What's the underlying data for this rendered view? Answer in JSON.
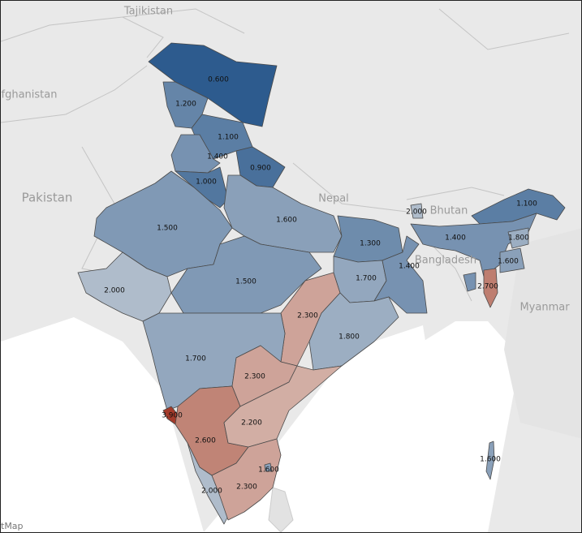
{
  "map": {
    "countries": [
      {
        "name": "Tajikistan"
      },
      {
        "name": "fghanistan"
      },
      {
        "name": "Pakistan"
      },
      {
        "name": "Nepal"
      },
      {
        "name": "Bhutan"
      },
      {
        "name": "Bangladesh"
      },
      {
        "name": "Myanmar"
      }
    ],
    "attribution": "tMap",
    "color_scale": {
      "low": "#2d5b8e",
      "mid": "#b8c3cf",
      "high": "#a33a2a",
      "low_value": 0.6,
      "mid_value": 2.1,
      "high_value": 3.9
    },
    "regions": [
      {
        "id": "ladakh",
        "value": "0.600"
      },
      {
        "id": "jammu-kashmir",
        "value": "1.200"
      },
      {
        "id": "himachal",
        "value": "1.100"
      },
      {
        "id": "punjab",
        "value": "1.400"
      },
      {
        "id": "uttarakhand",
        "value": "0.900"
      },
      {
        "id": "haryana",
        "value": "1.000"
      },
      {
        "id": "rajasthan",
        "value": "1.500"
      },
      {
        "id": "uttar-pradesh",
        "value": "1.600"
      },
      {
        "id": "bihar",
        "value": "1.300"
      },
      {
        "id": "madhya-pradesh",
        "value": "1.500"
      },
      {
        "id": "gujarat",
        "value": "2.000"
      },
      {
        "id": "chhattisgarh",
        "value": "2.300"
      },
      {
        "id": "jharkhand",
        "value": "1.700"
      },
      {
        "id": "west-bengal",
        "value": "1.400"
      },
      {
        "id": "odisha",
        "value": "1.800"
      },
      {
        "id": "maharashtra",
        "value": "1.700"
      },
      {
        "id": "telangana",
        "value": "2.300"
      },
      {
        "id": "goa",
        "value": "3.900"
      },
      {
        "id": "karnataka",
        "value": "2.600"
      },
      {
        "id": "andhra-pradesh",
        "value": "2.200"
      },
      {
        "id": "kerala",
        "value": "2.000"
      },
      {
        "id": "tamil-nadu",
        "value": "2.300"
      },
      {
        "id": "puducherry",
        "value": "1.600"
      },
      {
        "id": "sikkim",
        "value": "2.000"
      },
      {
        "id": "arunachal",
        "value": "1.100"
      },
      {
        "id": "assam",
        "value": "1.400"
      },
      {
        "id": "nagaland",
        "value": "1.800"
      },
      {
        "id": "manipur",
        "value": "1.600"
      },
      {
        "id": "mizoram",
        "value": "2.700"
      },
      {
        "id": "andaman",
        "value": "1.600"
      }
    ]
  }
}
